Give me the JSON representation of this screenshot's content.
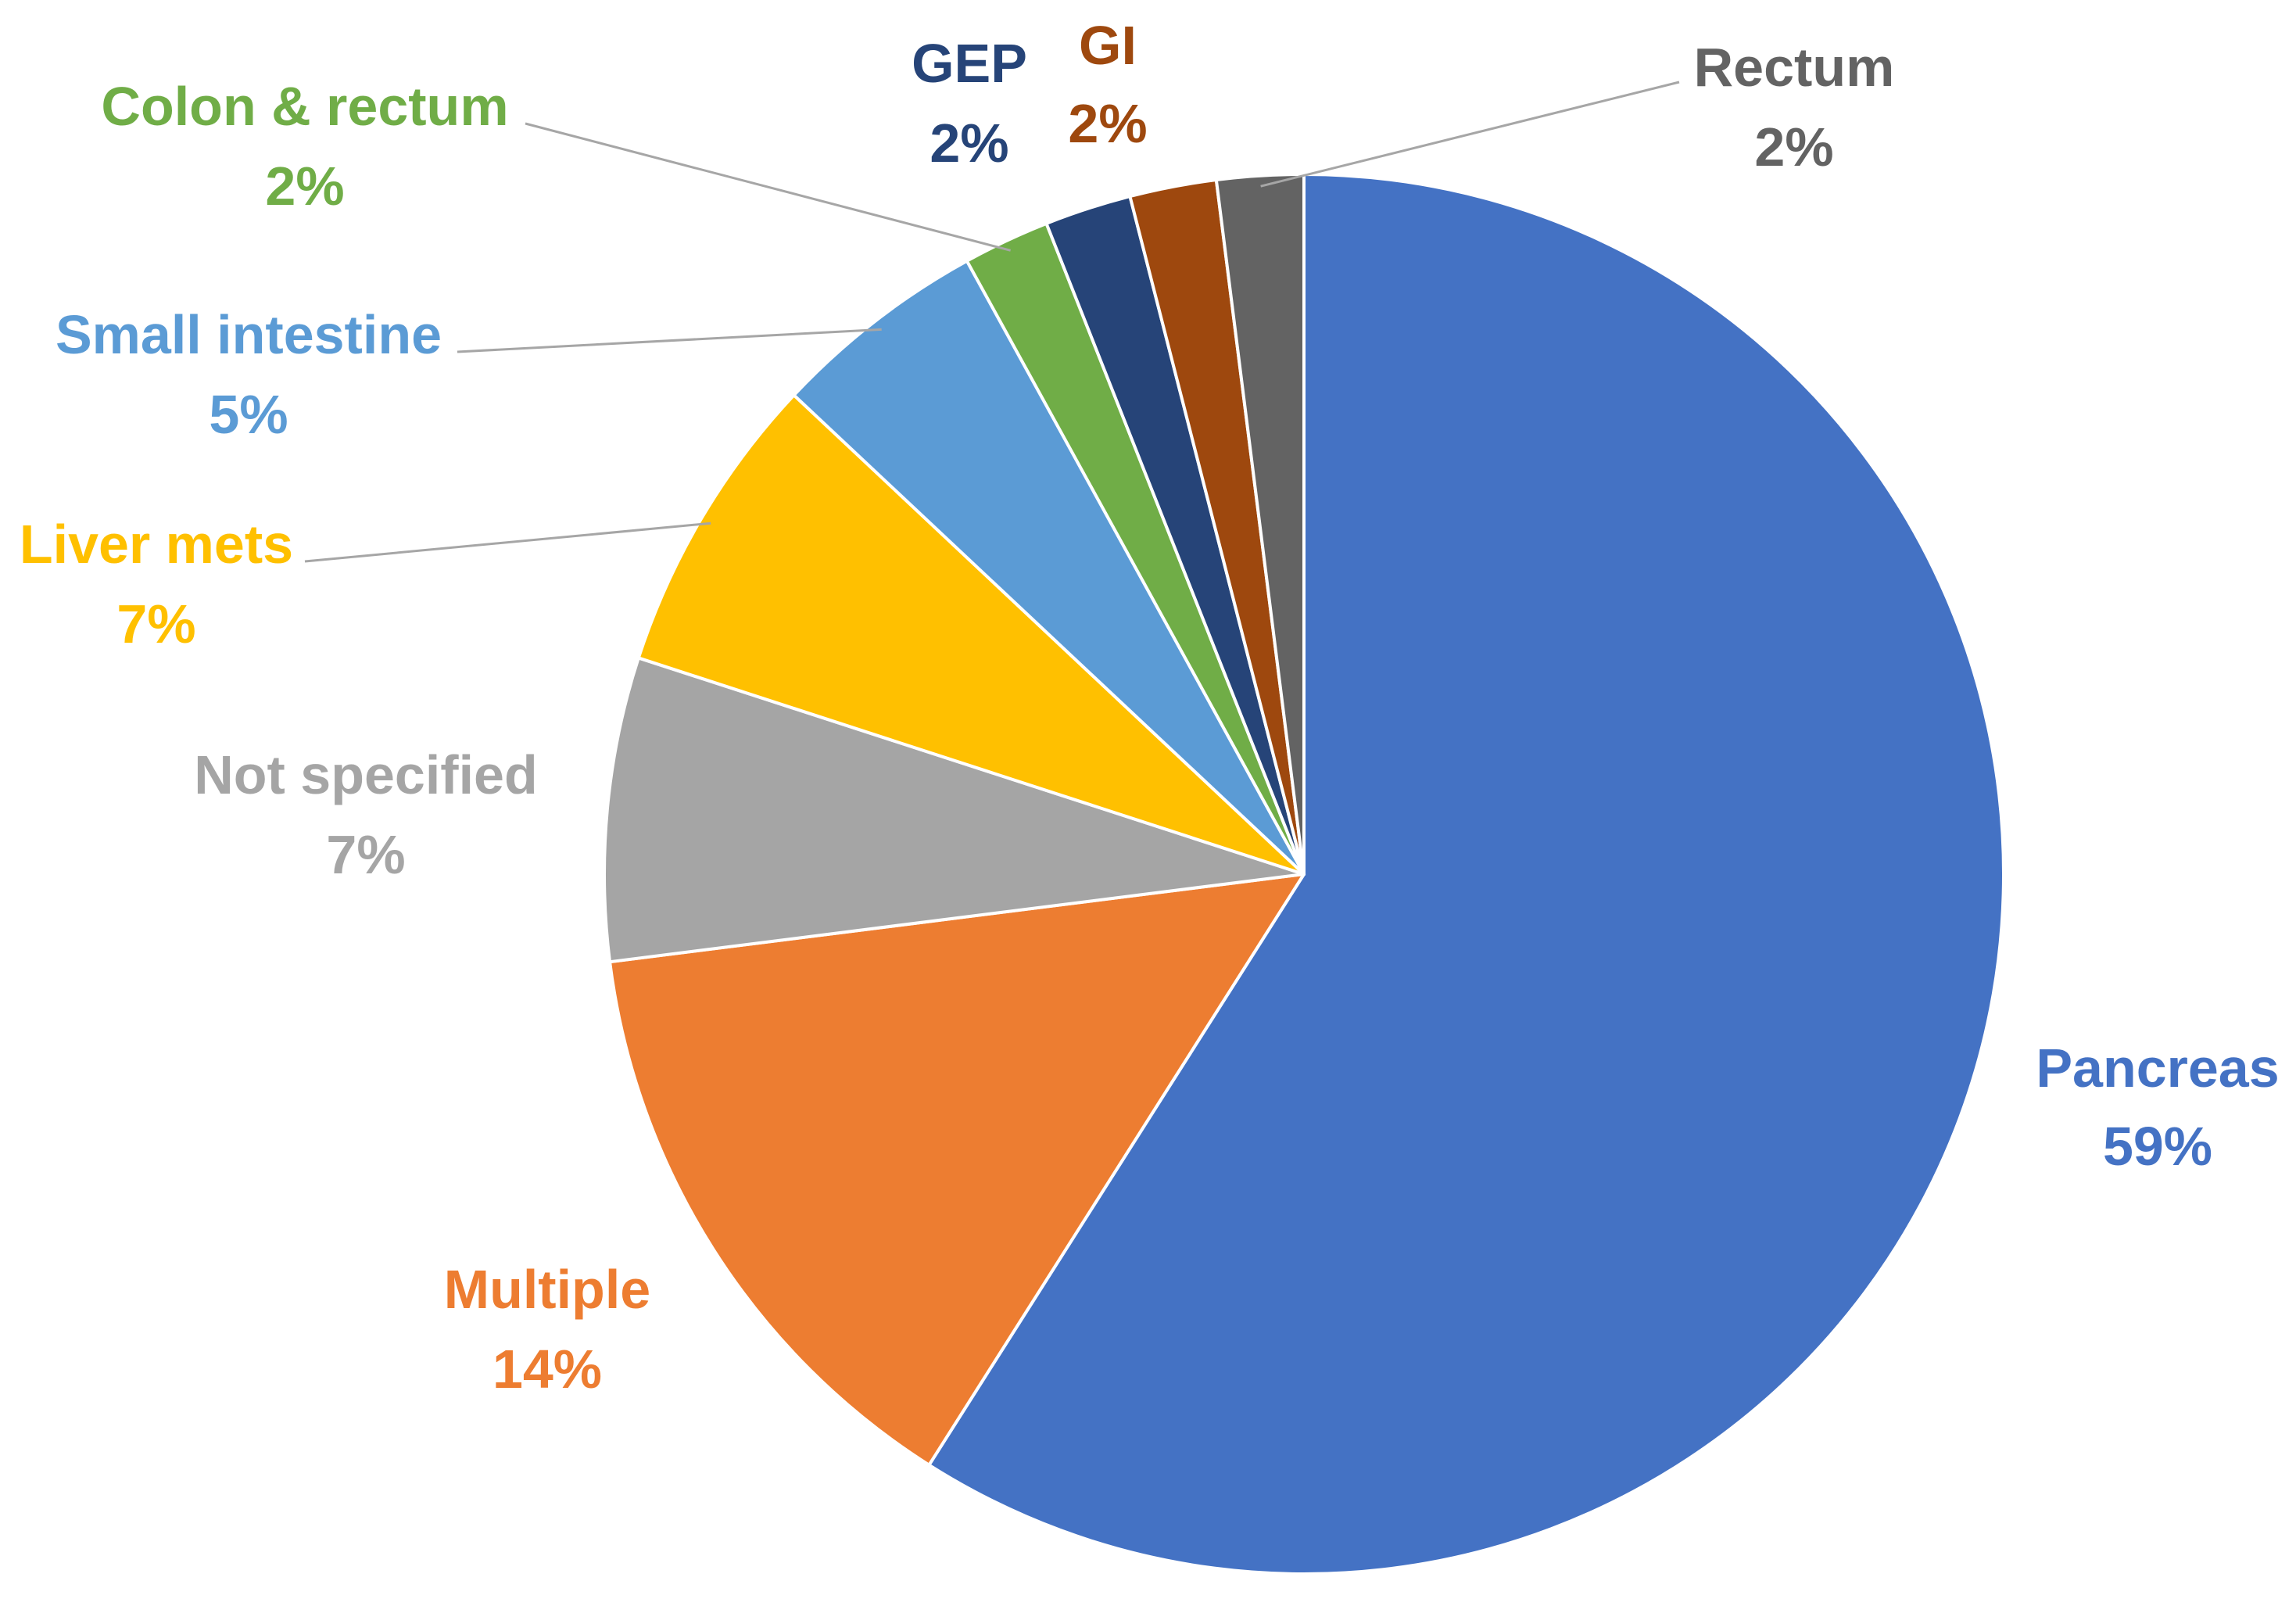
{
  "chart_data": {
    "type": "pie",
    "slices": [
      {
        "name": "Pancreas",
        "label": "Pancreas",
        "value": 59,
        "value_label": "59%",
        "color": "#4472C4"
      },
      {
        "name": "Multiple",
        "label": "Multiple",
        "value": 14,
        "value_label": "14%",
        "color": "#ED7D31"
      },
      {
        "name": "Not specified",
        "label": "Not specified",
        "value": 7,
        "value_label": "7%",
        "color": "#A5A5A5"
      },
      {
        "name": "Liver mets",
        "label": "Liver mets",
        "value": 7,
        "value_label": "7%",
        "color": "#FFC000"
      },
      {
        "name": "Small intestine",
        "label": "Small intestine",
        "value": 5,
        "value_label": "5%",
        "color": "#5B9BD5"
      },
      {
        "name": "Colon & rectum",
        "label": "Colon & rectum",
        "value": 2,
        "value_label": "2%",
        "color": "#70AD47"
      },
      {
        "name": "GEP",
        "label": "GEP",
        "value": 2,
        "value_label": "2%",
        "color": "#264478"
      },
      {
        "name": "GI",
        "label": "GI",
        "value": 2,
        "value_label": "2%",
        "color": "#9E480E"
      },
      {
        "name": "Rectum",
        "label": "Rectum",
        "value": 2,
        "value_label": "2%",
        "color": "#636363"
      }
    ],
    "start_position": "top, clockwise",
    "legend": "none",
    "data_labels": "category name and percentage, colored by slice"
  }
}
